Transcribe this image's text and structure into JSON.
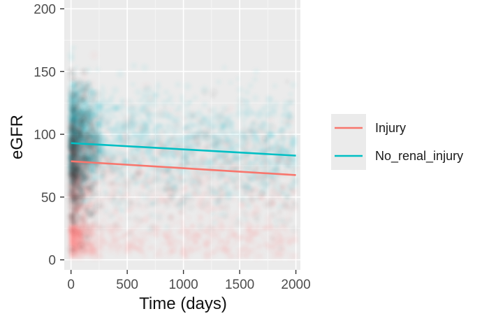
{
  "chart_data": {
    "type": "scatter",
    "title": "",
    "xlabel": "Time (days)",
    "ylabel": "eGFR",
    "xlim": [
      -60,
      2040
    ],
    "ylim": [
      -8,
      207
    ],
    "x_ticks": [
      0,
      500,
      1000,
      1500,
      2000
    ],
    "y_ticks": [
      0,
      50,
      100,
      150,
      200
    ],
    "grid": true,
    "legend_position": "right",
    "series": [
      {
        "name": "Injury",
        "color": "#F8766D",
        "trend_line": {
          "x": [
            0,
            2000
          ],
          "y": [
            78.5,
            67.5
          ]
        },
        "point_density": "concentrated at 5-100 eGFR, densest before 300 days, spread to 2000 days"
      },
      {
        "name": "No_renal_injury",
        "color": "#00BFC4",
        "trend_line": {
          "x": [
            0,
            2000
          ],
          "y": [
            93,
            83
          ]
        },
        "point_density": "concentrated at 60-140 eGFR, densest before 300 days, spread to 2000 days"
      }
    ]
  }
}
